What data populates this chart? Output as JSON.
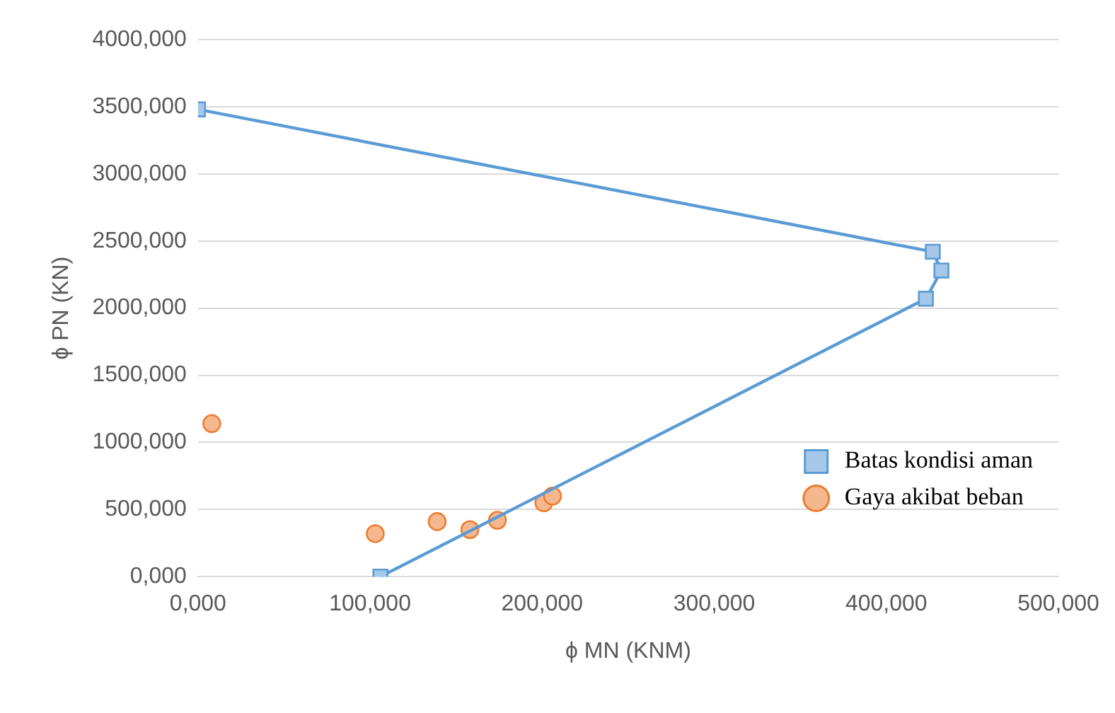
{
  "chart_data": {
    "type": "line",
    "xlabel": "ϕ MN (KNM)",
    "ylabel": "ϕ PN (KN)",
    "xlim": [
      0,
      500
    ],
    "xticks": [
      {
        "value": 0,
        "label": "0,000"
      },
      {
        "value": 100,
        "label": "100,000"
      },
      {
        "value": 200,
        "label": "200,000"
      },
      {
        "value": 300,
        "label": "300,000"
      },
      {
        "value": 400,
        "label": "400,000"
      },
      {
        "value": 500,
        "label": "500,000"
      }
    ],
    "ylim": [
      0,
      4000
    ],
    "yticks": [
      {
        "value": 0,
        "label": "0,000"
      },
      {
        "value": 500,
        "label": "500,000"
      },
      {
        "value": 1000,
        "label": "1000,000"
      },
      {
        "value": 1500,
        "label": "1500,000"
      },
      {
        "value": 2000,
        "label": "2000,000"
      },
      {
        "value": 2500,
        "label": "2500,000"
      },
      {
        "value": 3000,
        "label": "3000,000"
      },
      {
        "value": 3500,
        "label": "3500,000"
      },
      {
        "value": 4000,
        "label": "4000,000"
      }
    ],
    "grid": "y",
    "legend": "right",
    "series": [
      {
        "name": "Batas kondisi aman",
        "marker": "square",
        "color": "#5b9bd5",
        "x": [
          0,
          427,
          432,
          423,
          106
        ],
        "values": [
          3480,
          2420,
          2280,
          2070,
          0
        ]
      },
      {
        "name": "Gaya akibat beban",
        "type": "scatter",
        "marker": "circle",
        "color": "#ed7d31",
        "x": [
          8,
          103,
          139,
          158,
          174,
          201,
          206
        ],
        "values": [
          1140,
          320,
          410,
          350,
          420,
          550,
          600
        ]
      }
    ]
  }
}
